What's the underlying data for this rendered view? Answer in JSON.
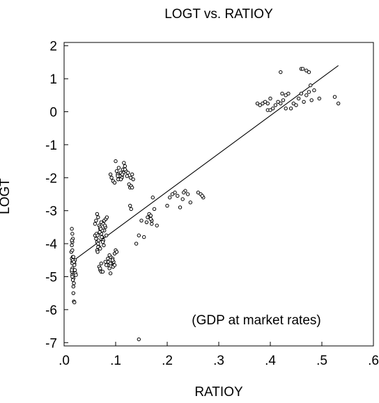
{
  "chart_data": {
    "type": "scatter",
    "title": "LOGT vs. RATIOY",
    "xlabel": "RATIOY",
    "ylabel": "LOGT",
    "annotation": "(GDP at market rates)",
    "xlim": [
      0.0,
      0.6
    ],
    "ylim": [
      -7.1,
      2.1
    ],
    "xticks": [
      0.0,
      0.1,
      0.2,
      0.3,
      0.4,
      0.5,
      0.6
    ],
    "xtick_labels": [
      ".0",
      ".1",
      ".2",
      ".3",
      ".4",
      ".5",
      ".6"
    ],
    "yticks": [
      -7,
      -6,
      -5,
      -4,
      -3,
      -2,
      -1,
      0,
      1,
      2
    ],
    "ytick_labels": [
      "-7",
      "-6",
      "-5",
      "-4",
      "-3",
      "-2",
      "-1",
      "0",
      "1",
      "2"
    ],
    "grid": false,
    "fit_line": {
      "x": [
        0.015,
        0.532
      ],
      "y": [
        -4.55,
        1.4
      ]
    },
    "points": {
      "x": [
        0.015,
        0.016,
        0.017,
        0.016,
        0.015,
        0.014,
        0.015,
        0.016,
        0.017,
        0.018,
        0.017,
        0.016,
        0.015,
        0.016,
        0.017,
        0.018,
        0.019,
        0.02,
        0.021,
        0.02,
        0.019,
        0.018,
        0.017,
        0.016,
        0.015,
        0.016,
        0.017,
        0.018,
        0.019,
        0.02,
        0.021,
        0.022,
        0.023,
        0.018,
        0.019,
        0.02,
        0.016,
        0.015,
        0.06,
        0.062,
        0.064,
        0.066,
        0.068,
        0.07,
        0.072,
        0.074,
        0.076,
        0.078,
        0.08,
        0.082,
        0.06,
        0.062,
        0.064,
        0.066,
        0.068,
        0.07,
        0.072,
        0.074,
        0.076,
        0.078,
        0.063,
        0.065,
        0.067,
        0.069,
        0.071,
        0.073,
        0.075,
        0.077,
        0.079,
        0.081,
        0.083,
        0.064,
        0.066,
        0.068,
        0.07,
        0.072,
        0.085,
        0.088,
        0.09,
        0.092,
        0.094,
        0.096,
        0.098,
        0.1,
        0.102,
        0.086,
        0.09,
        0.095,
        0.085,
        0.088,
        0.09,
        0.094,
        0.098,
        0.07,
        0.072,
        0.075,
        0.08,
        0.082,
        0.065,
        0.07,
        0.1,
        0.102,
        0.104,
        0.106,
        0.108,
        0.11,
        0.112,
        0.114,
        0.116,
        0.118,
        0.12,
        0.122,
        0.124,
        0.126,
        0.128,
        0.13,
        0.132,
        0.134,
        0.105,
        0.108,
        0.112,
        0.115,
        0.118,
        0.09,
        0.092,
        0.095,
        0.098,
        0.104,
        0.11,
        0.113,
        0.128,
        0.13,
        0.132,
        0.129,
        0.14,
        0.145,
        0.15,
        0.155,
        0.16,
        0.162,
        0.165,
        0.168,
        0.17,
        0.172,
        0.175,
        0.18,
        0.17,
        0.168,
        0.2,
        0.205,
        0.21,
        0.215,
        0.22,
        0.225,
        0.23,
        0.235,
        0.24,
        0.245,
        0.26,
        0.265,
        0.27,
        0.268,
        0.232,
        0.145,
        0.375,
        0.38,
        0.385,
        0.39,
        0.395,
        0.4,
        0.405,
        0.41,
        0.415,
        0.42,
        0.425,
        0.43,
        0.435,
        0.44,
        0.445,
        0.45,
        0.455,
        0.46,
        0.465,
        0.47,
        0.475,
        0.48,
        0.485,
        0.495,
        0.525,
        0.532,
        0.395,
        0.4,
        0.43,
        0.46,
        0.463,
        0.47,
        0.475,
        0.478,
        0.423,
        0.42
      ],
      "y": [
        -3.55,
        -3.7,
        -3.85,
        -3.95,
        -4.05,
        -4.25,
        -4.45,
        -4.55,
        -4.6,
        -4.5,
        -4.4,
        -4.75,
        -4.85,
        -4.95,
        -5.0,
        -5.05,
        -4.8,
        -4.6,
        -4.5,
        -4.95,
        -5.2,
        -5.3,
        -5.1,
        -5.0,
        -4.8,
        -4.6,
        -4.5,
        -4.4,
        -4.55,
        -4.65,
        -4.8,
        -4.9,
        -4.95,
        -5.5,
        -5.75,
        -5.78,
        -4.2,
        -3.9,
        -3.4,
        -3.3,
        -3.1,
        -3.2,
        -3.45,
        -3.55,
        -3.7,
        -3.8,
        -3.9,
        -3.6,
        -3.5,
        -3.75,
        -3.75,
        -3.85,
        -3.95,
        -4.0,
        -4.1,
        -3.5,
        -3.35,
        -3.6,
        -3.4,
        -3.3,
        -3.7,
        -3.75,
        -3.9,
        -3.65,
        -3.55,
        -3.8,
        -3.95,
        -4.05,
        -3.45,
        -3.25,
        -3.2,
        -4.2,
        -4.1,
        -4.7,
        -4.8,
        -4.85,
        -4.65,
        -4.75,
        -4.9,
        -4.6,
        -4.45,
        -4.55,
        -4.3,
        -4.2,
        -4.25,
        -4.55,
        -4.4,
        -4.7,
        -4.45,
        -4.35,
        -4.6,
        -4.5,
        -4.65,
        -4.75,
        -4.6,
        -4.85,
        -4.55,
        -4.65,
        -4.25,
        -4.15,
        -1.5,
        -1.8,
        -1.9,
        -1.7,
        -2.0,
        -1.85,
        -1.95,
        -1.75,
        -1.55,
        -1.65,
        -1.8,
        -1.95,
        -1.85,
        -2.2,
        -2.3,
        -2.25,
        -1.9,
        -2.05,
        -2.05,
        -1.95,
        -2.0,
        -1.85,
        -1.75,
        -1.9,
        -2.0,
        -2.1,
        -2.15,
        -1.95,
        -2.05,
        -1.9,
        -2.85,
        -2.95,
        -2.3,
        -2.0,
        -4.0,
        -3.75,
        -3.3,
        -3.8,
        -3.35,
        -3.2,
        -3.1,
        -3.15,
        -3.4,
        -2.6,
        -2.95,
        -3.45,
        -3.3,
        -3.25,
        -2.85,
        -2.6,
        -2.5,
        -2.45,
        -2.55,
        -2.9,
        -2.65,
        -2.4,
        -2.5,
        -2.75,
        -2.45,
        -2.5,
        -2.6,
        -2.55,
        -2.45,
        -6.9,
        0.25,
        0.2,
        0.25,
        0.3,
        0.25,
        0.4,
        0.1,
        0.2,
        0.3,
        0.25,
        0.35,
        0.5,
        0.55,
        0.1,
        0.25,
        0.2,
        0.4,
        0.55,
        0.3,
        0.5,
        0.6,
        0.35,
        0.65,
        0.4,
        0.45,
        0.25,
        0.05,
        0.05,
        0.1,
        1.3,
        1.3,
        1.25,
        1.2,
        0.8,
        0.55,
        1.2
      ]
    }
  }
}
